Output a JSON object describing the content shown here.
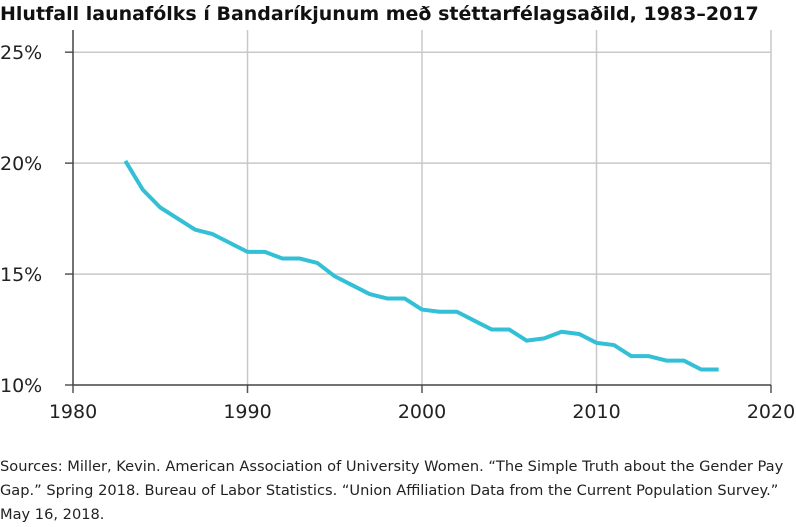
{
  "chart_data": {
    "type": "line",
    "title": "Hlutfall launafólks í Bandaríkjunum með stéttarfélagsaðild, 1983–2017",
    "xlabel": "",
    "ylabel": "",
    "xlim": [
      1980,
      2020
    ],
    "ylim": [
      10,
      26
    ],
    "x_ticks": [
      1980,
      1990,
      2000,
      2010,
      2020
    ],
    "y_ticks": [
      10,
      15,
      20,
      25
    ],
    "x_tick_labels": [
      "1980",
      "1990",
      "2000",
      "2010",
      "2020"
    ],
    "y_tick_labels": [
      "10%",
      "15%",
      "20%",
      "25%"
    ],
    "grid": true,
    "series": [
      {
        "color": "#33bfd6",
        "x": [
          1983,
          1984,
          1985,
          1986,
          1987,
          1988,
          1989,
          1990,
          1991,
          1992,
          1993,
          1994,
          1995,
          1996,
          1997,
          1998,
          1999,
          2000,
          2001,
          2002,
          2003,
          2004,
          2005,
          2006,
          2007,
          2008,
          2009,
          2010,
          2011,
          2012,
          2013,
          2014,
          2015,
          2016,
          2017
        ],
        "values": [
          20.1,
          18.8,
          18.0,
          17.5,
          17.0,
          16.8,
          16.4,
          16.0,
          16.0,
          15.7,
          15.7,
          15.5,
          14.9,
          14.5,
          14.1,
          13.9,
          13.9,
          13.4,
          13.3,
          13.3,
          12.9,
          12.5,
          12.5,
          12.0,
          12.1,
          12.4,
          12.3,
          11.9,
          11.8,
          11.3,
          11.3,
          11.1,
          11.1,
          10.7,
          10.7
        ]
      }
    ]
  },
  "source_text": "Sources: Miller, Kevin. American Association of University Women. “The Simple Truth about the Gender Pay Gap.” Spring 2018. Bureau of Labor Statistics. “Union Affiliation Data from the Current Population Survey.” May 16, 2018."
}
